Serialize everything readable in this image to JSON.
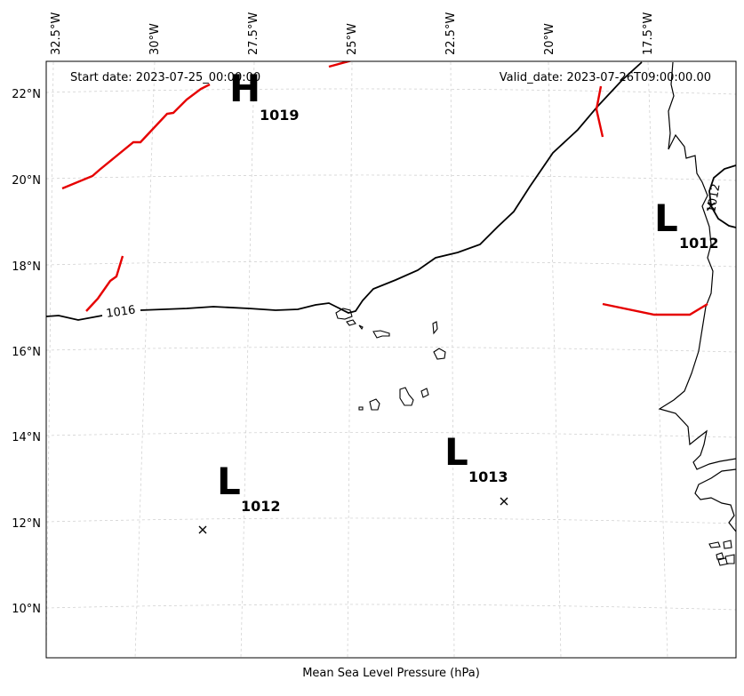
{
  "header": {
    "start_date": "Start date: 2023-07-25_00:00:00",
    "valid_date": "Valid_date: 2023-07-26T09:00:00.00"
  },
  "xlabel": "Mean Sea Level Pressure (hPa)",
  "longitude_ticks": [
    "32.5°W",
    "30°W",
    "27.5°W",
    "25°W",
    "22.5°W",
    "20°W",
    "17.5°W"
  ],
  "latitude_ticks": [
    "22°N",
    "20°N",
    "18°N",
    "16°N",
    "14°N",
    "12°N",
    "10°N"
  ],
  "pressure_centers": [
    {
      "type": "H",
      "value": "1019"
    },
    {
      "type": "L",
      "value": "1012"
    },
    {
      "type": "L",
      "value": "1013"
    },
    {
      "type": "L",
      "value": "1012"
    }
  ],
  "isobar_labels": [
    "1016",
    "1012"
  ],
  "colors": {
    "isobar": "#000000",
    "front": "#e60000",
    "grid": "#cccccc"
  }
}
